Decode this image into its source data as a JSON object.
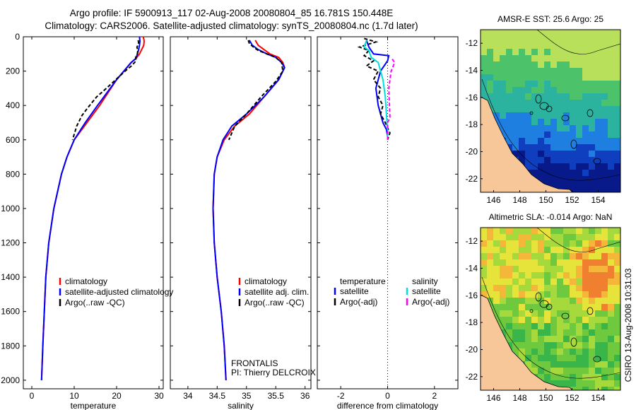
{
  "header": {
    "title_line1": "Argo profile: IF 5900913_117 02-Aug-2008 20080804_85 16.781S 150.448E",
    "title_line2": "Climatology: CARS2006. Satellite-adjusted climatology: synTS_20080804.nc (1.7d later)"
  },
  "side_label": "CSIRO 13-Aug-2008 10:31:03",
  "chart_data": [
    {
      "type": "line",
      "panel": "temperature",
      "xlabel": "temperature",
      "ylabel": "",
      "xlim": [
        -2,
        31
      ],
      "ylim": [
        2050,
        0
      ],
      "xticks": [
        0,
        10,
        20,
        30
      ],
      "yticks": [
        0,
        200,
        400,
        600,
        800,
        1000,
        1200,
        1400,
        1600,
        1800,
        2000
      ],
      "legend": [
        "climatology",
        "satellite-adjusted climatology",
        "Argo(..raw -QC)"
      ],
      "series": [
        {
          "name": "climatology",
          "color": "#ff0000",
          "style": "solid",
          "x": [
            26.3,
            26.5,
            26.4,
            25.9,
            25.4,
            24.6,
            23.5,
            20,
            16,
            13,
            10,
            8.3,
            7,
            5.2,
            4,
            3.3,
            2.6,
            2.3
          ],
          "y": [
            0,
            25,
            50,
            75,
            100,
            125,
            150,
            250,
            400,
            500,
            600,
            700,
            800,
            1000,
            1200,
            1400,
            1800,
            2000
          ]
        },
        {
          "name": "satellite adj.",
          "color": "#0000ff",
          "style": "solid",
          "x": [
            25.4,
            25.5,
            25.4,
            25.2,
            24.9,
            24.6,
            23.4,
            20,
            15.5,
            12.6,
            10,
            8.3,
            7,
            5.2,
            4,
            3.3,
            2.6,
            2.3
          ],
          "y": [
            0,
            25,
            50,
            75,
            100,
            125,
            150,
            250,
            400,
            500,
            600,
            700,
            800,
            1000,
            1200,
            1400,
            1800,
            2000
          ]
        },
        {
          "name": "Argo",
          "color": "#000000",
          "style": "dashed",
          "x": [
            25.1,
            25.2,
            24.8,
            25.0,
            24.9,
            24.5,
            24.6,
            23.5,
            22,
            19.8,
            17.6,
            15.3,
            13,
            11.8,
            10.6,
            9.6
          ],
          "y": [
            20,
            40,
            60,
            80,
            100,
            120,
            140,
            170,
            200,
            250,
            300,
            350,
            420,
            460,
            520,
            600
          ]
        }
      ]
    },
    {
      "type": "line",
      "panel": "salinity",
      "xlabel": "salinity",
      "xlim": [
        33.7,
        36.1
      ],
      "ylim": [
        2050,
        0
      ],
      "xticks": [
        34,
        34.5,
        35,
        35.5,
        36
      ],
      "legend": [
        "climatology",
        "satellite adj. clim.",
        "Argo(..raw -QC)"
      ],
      "annotation": [
        "FRONTALIS",
        "PI: Thierry DELCROIX"
      ],
      "series": [
        {
          "name": "climatology",
          "color": "#ff0000",
          "style": "solid",
          "x": [
            35.15,
            35.2,
            35.3,
            35.4,
            35.55,
            35.62,
            35.65,
            35.55,
            35.3,
            35.05,
            34.8,
            34.62,
            34.5,
            34.45,
            34.43,
            34.45,
            34.5,
            34.57,
            34.62,
            34.65
          ],
          "y": [
            20,
            50,
            75,
            100,
            120,
            150,
            180,
            250,
            350,
            450,
            520,
            600,
            700,
            800,
            1000,
            1200,
            1400,
            1600,
            1800,
            2000
          ]
        },
        {
          "name": "satellite adj.",
          "color": "#0000ff",
          "style": "solid",
          "x": [
            35.05,
            35.1,
            35.2,
            35.35,
            35.5,
            35.6,
            35.65,
            35.55,
            35.3,
            35.0,
            34.75,
            34.6,
            34.5,
            34.45,
            34.43,
            34.45,
            34.5,
            34.57,
            34.62,
            34.65
          ],
          "y": [
            20,
            50,
            75,
            100,
            120,
            150,
            180,
            250,
            350,
            450,
            520,
            600,
            700,
            800,
            1000,
            1200,
            1400,
            1600,
            1800,
            2000
          ]
        },
        {
          "name": "Argo",
          "color": "#000000",
          "style": "dashed",
          "x": [
            35.03,
            35.05,
            35.12,
            35.2,
            35.35,
            35.5,
            35.6,
            35.62,
            35.5,
            35.25,
            35.0,
            34.8,
            34.7
          ],
          "y": [
            20,
            40,
            60,
            80,
            100,
            120,
            150,
            200,
            260,
            350,
            450,
            520,
            600
          ]
        }
      ]
    },
    {
      "type": "line",
      "panel": "difference",
      "xlabel": "difference from climatology",
      "xlim": [
        -3,
        3
      ],
      "ylim": [
        2050,
        0
      ],
      "xticks": [
        -2,
        0,
        2
      ],
      "legend_groups": [
        {
          "title": "temperature",
          "entries": [
            "satellite",
            "Argo(-adj)"
          ]
        },
        {
          "title": "salinity",
          "entries": [
            "satellite",
            "Argo(-adj)"
          ]
        }
      ],
      "series": [
        {
          "name": "temperature satellite",
          "color": "#0000ff",
          "style": "solid",
          "x": [
            -0.9,
            -0.8,
            -0.6,
            0.05,
            0.0,
            -0.3,
            -0.5,
            -0.4,
            -0.2,
            -0.05,
            0.0,
            0.0
          ],
          "y": [
            20,
            60,
            100,
            110,
            140,
            200,
            300,
            400,
            500,
            540,
            580,
            600
          ]
        },
        {
          "name": "temperature Argo(-adj)",
          "color": "#000000",
          "style": "dashed",
          "x": [
            -1.0,
            -0.5,
            -1.2,
            -0.8,
            -1.0,
            -0.6,
            -0.9,
            -0.4,
            -0.6,
            -0.3,
            -0.4,
            -0.2,
            -0.3,
            -0.1,
            0.1,
            0.0
          ],
          "y": [
            10,
            30,
            60,
            80,
            110,
            140,
            170,
            200,
            250,
            300,
            350,
            400,
            450,
            500,
            560,
            600
          ]
        },
        {
          "name": "salinity satellite",
          "color": "#00e0e0",
          "style": "solid",
          "x": [
            -0.9,
            -1.0,
            -0.8,
            -0.7,
            -0.4,
            -0.2,
            -0.1,
            -0.05,
            0.0,
            0.0
          ],
          "y": [
            20,
            60,
            80,
            120,
            150,
            250,
            350,
            450,
            550,
            600
          ]
        },
        {
          "name": "salinity Argo(-adj)",
          "color": "#ff00ff",
          "style": "dashed",
          "x": [
            0.2,
            0.3,
            0.15,
            0.05,
            0.1,
            0.0,
            0.0
          ],
          "y": [
            130,
            150,
            200,
            300,
            470,
            500,
            600
          ]
        }
      ]
    },
    {
      "type": "heatmap",
      "panel": "sst_map",
      "title": "AMSR-E SST: 25.6 Argo: 25",
      "xticks": [
        146,
        148,
        150,
        152,
        154
      ],
      "yticks": [
        -12,
        -14,
        -16,
        -18,
        -20,
        -22
      ],
      "xlim": [
        145,
        155.7
      ],
      "ylim": [
        -23,
        -11
      ]
    },
    {
      "type": "heatmap",
      "panel": "sla_map",
      "title": "Altimetric SLA: -0.014 Argo: NaN",
      "xticks": [
        146,
        148,
        150,
        152,
        154
      ],
      "yticks": [
        -12,
        -14,
        -16,
        -18,
        -20,
        -22
      ],
      "xlim": [
        145,
        155.7
      ],
      "ylim": [
        -23,
        -11
      ]
    }
  ]
}
